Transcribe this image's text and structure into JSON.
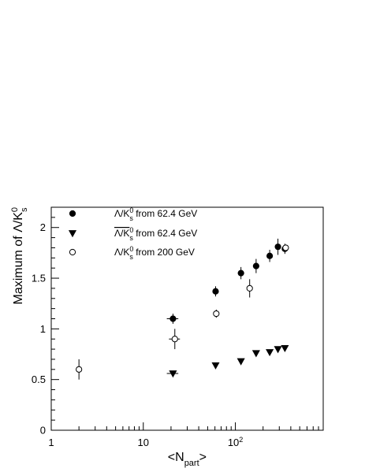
{
  "chart_data": {
    "type": "scatter",
    "x_scale": "log",
    "xlim": [
      1,
      900
    ],
    "ylim": [
      0,
      2.2
    ],
    "xlabel": {
      "main": "<N",
      "sub": "part",
      "close": ">"
    },
    "ylabel": {
      "main": "Maximum of Λ/K",
      "sup": "0",
      "sub": "s"
    },
    "x_ticks": [
      {
        "value": 1,
        "label": "1"
      },
      {
        "value": 10,
        "label": "10"
      },
      {
        "value": 100,
        "label": "10",
        "sup": "2"
      }
    ],
    "y_ticks": [
      {
        "value": 0,
        "label": "0"
      },
      {
        "value": 0.5,
        "label": "0.5"
      },
      {
        "value": 1,
        "label": "1"
      },
      {
        "value": 1.5,
        "label": "1.5"
      },
      {
        "value": 2,
        "label": "2"
      }
    ],
    "grid": false,
    "legend_position": "top-left",
    "series": [
      {
        "name": "Λ/K_s^0 from 62.4 GeV",
        "label_parts": {
          "main": "Λ/K",
          "sup": "0",
          "sub": "s",
          "tail": " from 62.4 GeV"
        },
        "marker": "filled-circle",
        "points": [
          {
            "x": 21,
            "y": 1.1,
            "yerr": 0.05,
            "xerr": 3
          },
          {
            "x": 61,
            "y": 1.37,
            "yerr": 0.05
          },
          {
            "x": 115,
            "y": 1.55,
            "yerr": 0.06
          },
          {
            "x": 168,
            "y": 1.62,
            "yerr": 0.07
          },
          {
            "x": 236,
            "y": 1.72,
            "yerr": 0.06
          },
          {
            "x": 290,
            "y": 1.81,
            "yerr": 0.08
          },
          {
            "x": 345,
            "y": 1.79,
            "yerr": 0.05
          }
        ]
      },
      {
        "name": "Λ̄/K_s^0 from 62.4 GeV",
        "label_parts": {
          "main": "Λ/K",
          "sup": "0",
          "sub": "s",
          "tail": " from 62.4 GeV",
          "bar": true
        },
        "marker": "filled-triangle-down",
        "points": [
          {
            "x": 21,
            "y": 0.56,
            "yerr": 0.01,
            "xerr": 3
          },
          {
            "x": 61,
            "y": 0.64,
            "yerr": 0.01
          },
          {
            "x": 115,
            "y": 0.68,
            "yerr": 0.02
          },
          {
            "x": 168,
            "y": 0.76,
            "yerr": 0.02
          },
          {
            "x": 236,
            "y": 0.77,
            "yerr": 0.02
          },
          {
            "x": 290,
            "y": 0.8,
            "yerr": 0.02
          },
          {
            "x": 345,
            "y": 0.81,
            "yerr": 0.02
          }
        ]
      },
      {
        "name": "Λ/K_s^0 from 200 GeV",
        "label_parts": {
          "main": "Λ/K",
          "sup": "0",
          "sub": "s",
          "tail": " from 200 GeV"
        },
        "marker": "open-circle",
        "points": [
          {
            "x": 2,
            "y": 0.6,
            "yerr": 0.1
          },
          {
            "x": 22,
            "y": 0.9,
            "yerr": 0.1,
            "xerr": 3
          },
          {
            "x": 62,
            "y": 1.15,
            "yerr": 0.04
          },
          {
            "x": 143,
            "y": 1.4,
            "yerr": 0.09
          },
          {
            "x": 352,
            "y": 1.8,
            "yerr": 0.03
          }
        ]
      }
    ]
  }
}
